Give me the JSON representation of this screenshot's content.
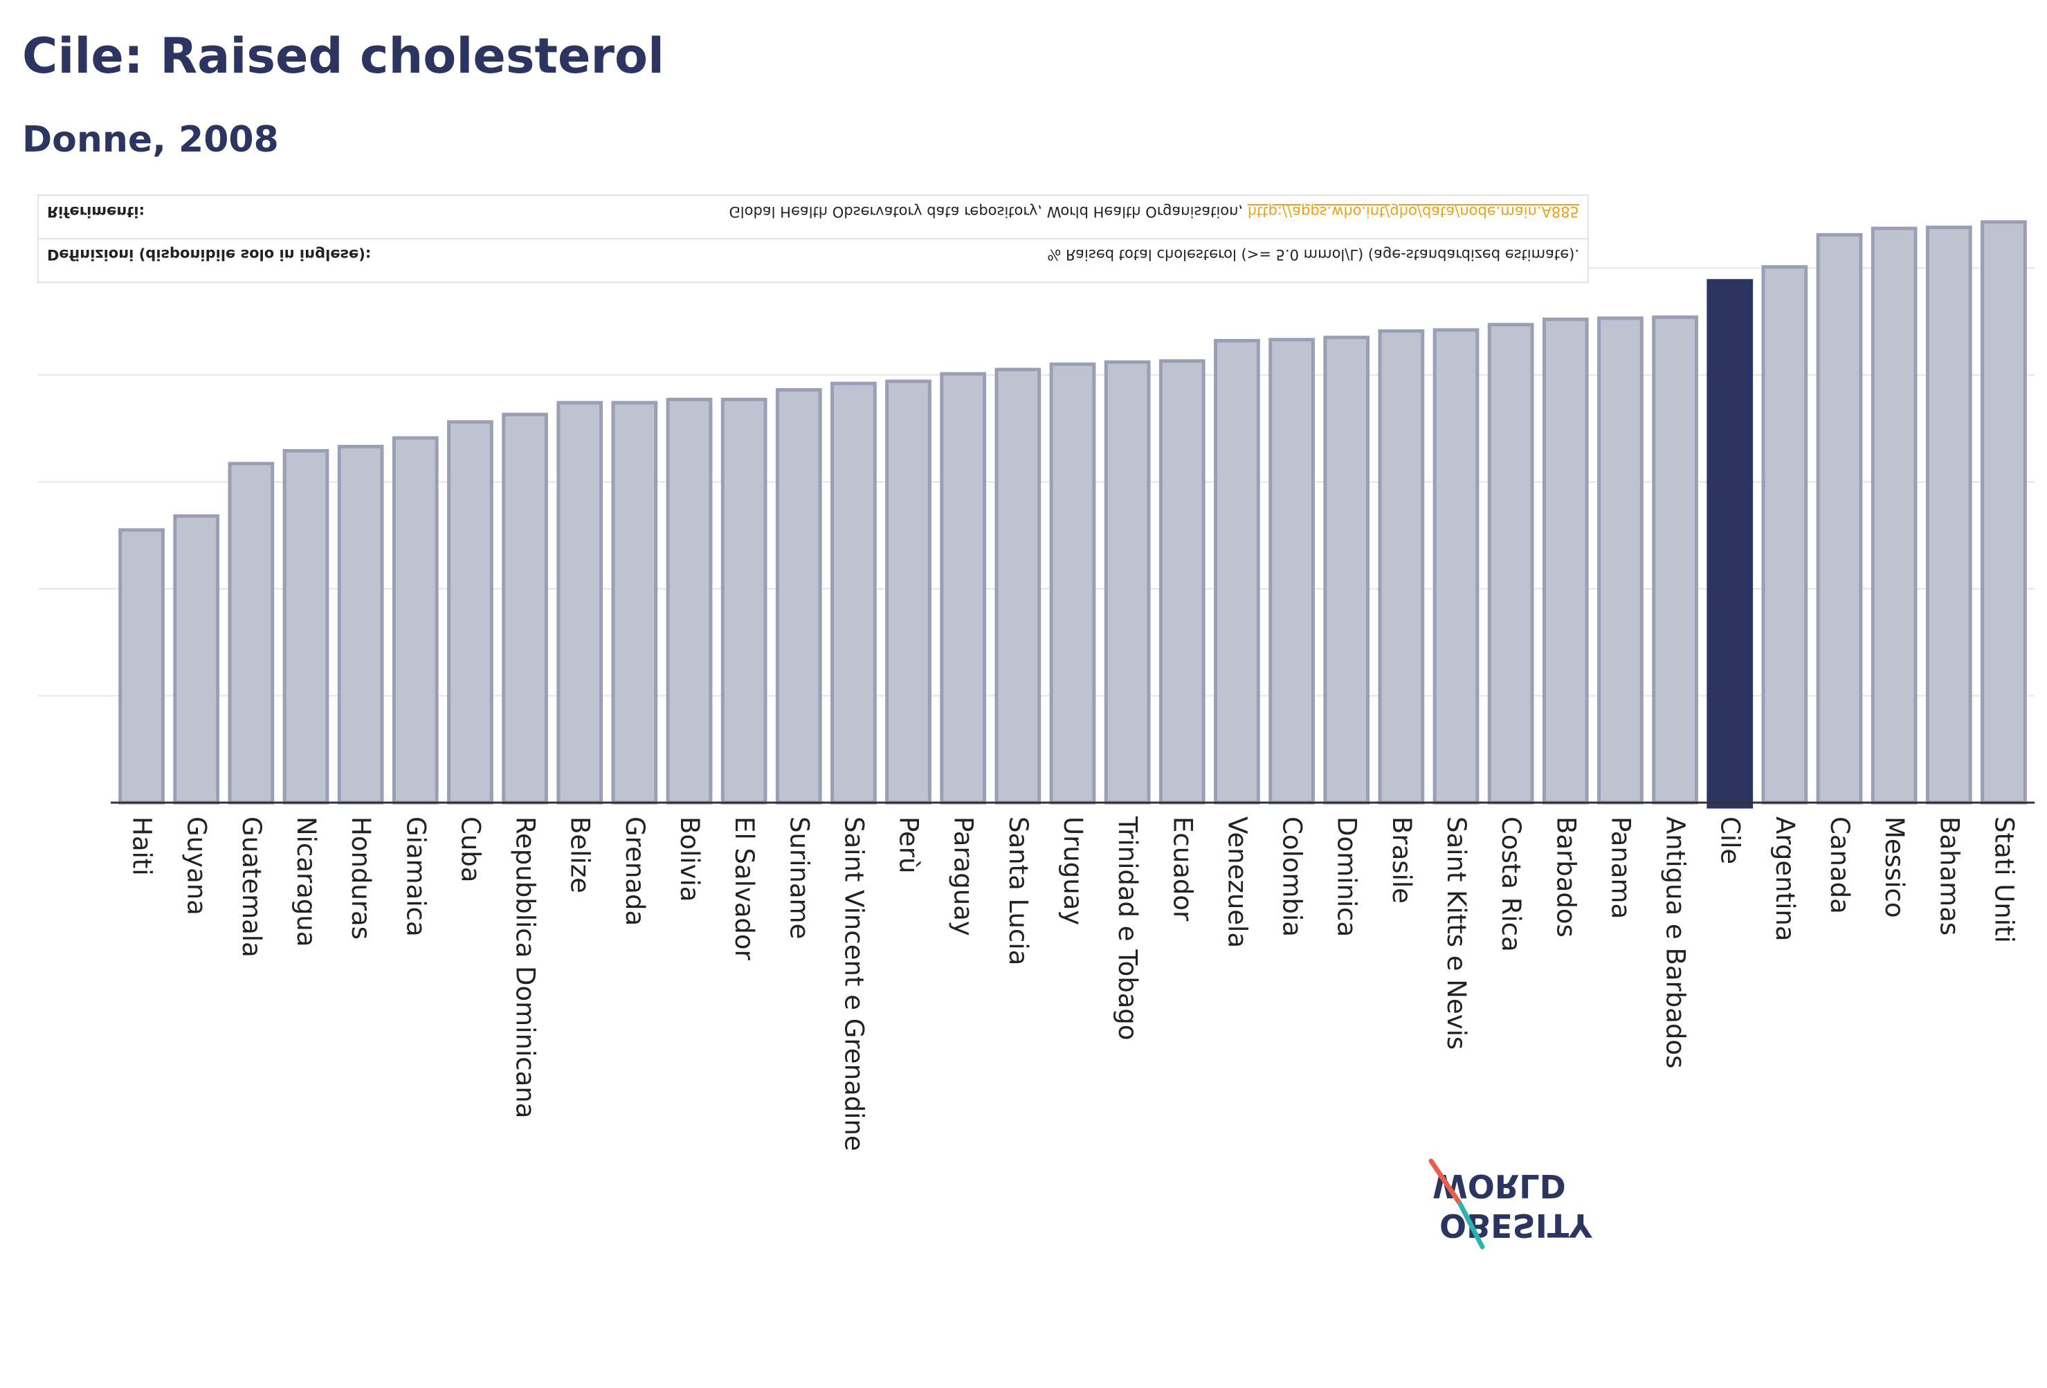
{
  "title": "Cile: Raised cholesterol",
  "subtitle": "Donne, 2008",
  "notes": {
    "definitions_label": "Definizioni (disponibile solo in inglese):",
    "definitions_text": "% Raised total cholesterol (>= 5.0 mmol/L) (age-standardized estimate).",
    "references_label": "Riferimenti:",
    "references_text": "Global Health Observatory data repository, World Health Organisation,",
    "references_link": "http://apps.who.int/gho/data/node.main.A885"
  },
  "logo": {
    "line1": "OBESITY",
    "line2": "WORLD",
    "accent_red": "#e8604c",
    "accent_teal": "#2bb3b1"
  },
  "colors": {
    "bar": "#bfc3d0",
    "bar_border": "#9a9fb5",
    "highlight": "#2b3560"
  },
  "chart_data": {
    "type": "bar",
    "title": "Cile: Raised cholesterol",
    "subtitle": "Donne, 2008",
    "highlight": "Cile",
    "ylim": [
      0,
      55
    ],
    "grid": true,
    "categories": [
      "Haiti",
      "Guyana",
      "Guatemala",
      "Nicaragua",
      "Honduras",
      "Giamaica",
      "Cuba",
      "Repubblica Dominicana",
      "Belize",
      "Grenada",
      "Bolivia",
      "El Salvador",
      "Suriname",
      "Saint Vincent e Grenadine",
      "Perù",
      "Paraguay",
      "Santa Lucia",
      "Uruguay",
      "Trinidad e Tobago",
      "Ecuador",
      "Venezuela",
      "Colombia",
      "Dominica",
      "Brasile",
      "Saint Kitts e Nevis",
      "Costa Rica",
      "Barbados",
      "Panama",
      "Antigua e Barbados",
      "Cile",
      "Argentina",
      "Canada",
      "Messico",
      "Bahamas",
      "Stati Uniti"
    ],
    "values": [
      25.5,
      26.8,
      31.7,
      32.9,
      33.3,
      34.1,
      35.6,
      36.3,
      37.4,
      37.4,
      37.7,
      37.7,
      38.6,
      39.2,
      39.4,
      40.1,
      40.5,
      41.0,
      41.2,
      41.3,
      43.2,
      43.3,
      43.5,
      44.1,
      44.2,
      44.7,
      45.2,
      45.3,
      45.4,
      48.8,
      50.1,
      53.1,
      53.7,
      53.8,
      54.3
    ]
  }
}
